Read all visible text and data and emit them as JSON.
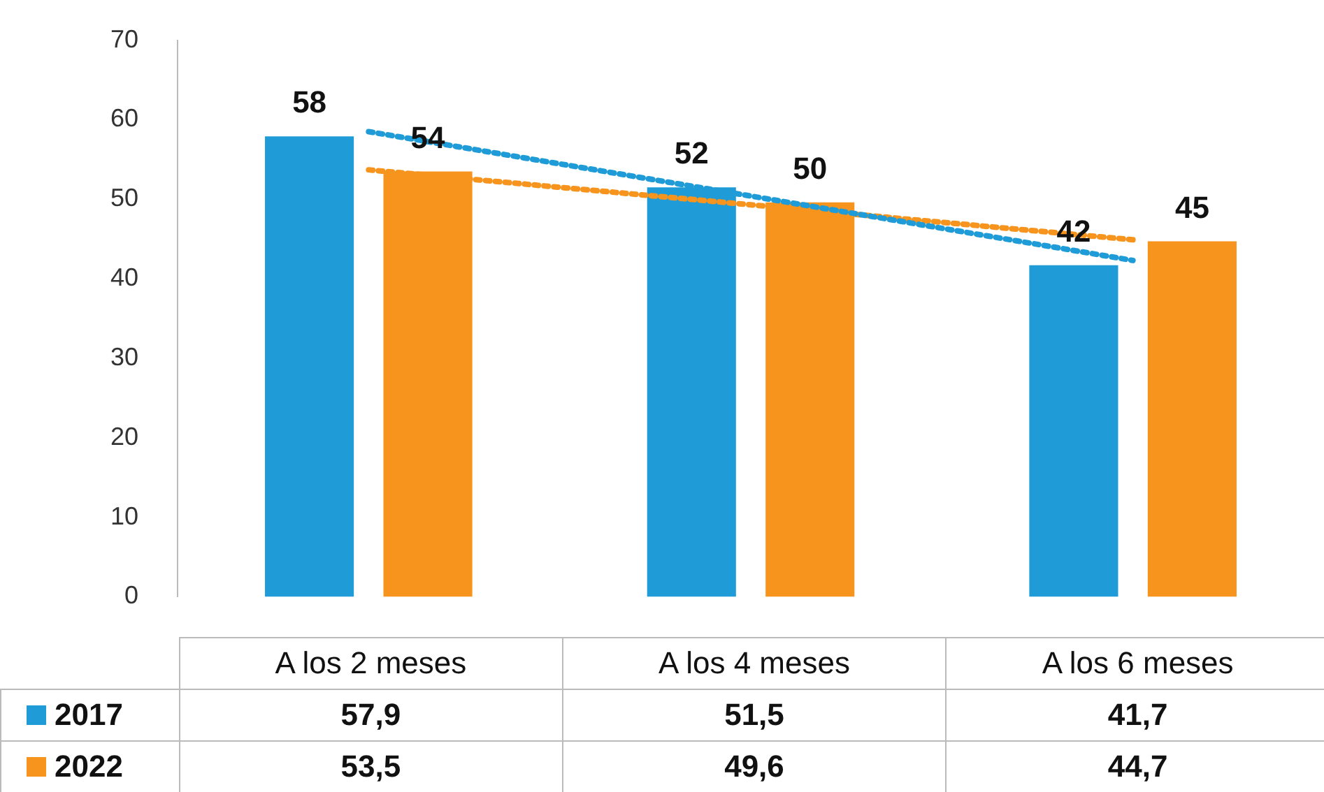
{
  "chart_data": {
    "type": "bar",
    "categories": [
      "A los 2 meses",
      "A los 4 meses",
      "A los 6 meses"
    ],
    "series": [
      {
        "name": "2017",
        "color": "#1f9cd8",
        "values": [
          57.9,
          51.5,
          41.7
        ],
        "value_labels": [
          "57,9",
          "51,5",
          "41,7"
        ]
      },
      {
        "name": "2022",
        "color": "#f7941d",
        "values": [
          53.5,
          49.6,
          44.7
        ],
        "value_labels": [
          "53,5",
          "49,6",
          "44,7"
        ]
      },
      {
        "type": "line",
        "color": "#1f9cd8",
        "values": [
          58.5,
          50.4,
          42.3
        ],
        "line_style": "dotted",
        "marker": "none"
      },
      {
        "type": "line",
        "color": "#f7941d",
        "values": [
          53.7,
          49.3,
          44.9
        ],
        "line_style": "dotted",
        "marker": "none"
      }
    ],
    "annotations": [
      {
        "text": "58",
        "x": "A los 2 meses",
        "y": 57.9
      },
      {
        "text": "54",
        "x": "A los 2 meses",
        "y": 53.5
      },
      {
        "text": "52",
        "x": "A los 4 meses",
        "y": 51.5
      },
      {
        "text": "50",
        "x": "A los 4 meses",
        "y": 49.6
      },
      {
        "text": "42",
        "x": "A los 6 meses",
        "y": 41.7
      },
      {
        "text": "45",
        "x": "A los 6 meses",
        "y": 44.7
      }
    ],
    "ylim": [
      0,
      70
    ],
    "yticks": [
      0,
      10,
      20,
      30,
      40,
      50,
      60,
      70
    ],
    "grid": false,
    "legend": "bottom"
  }
}
